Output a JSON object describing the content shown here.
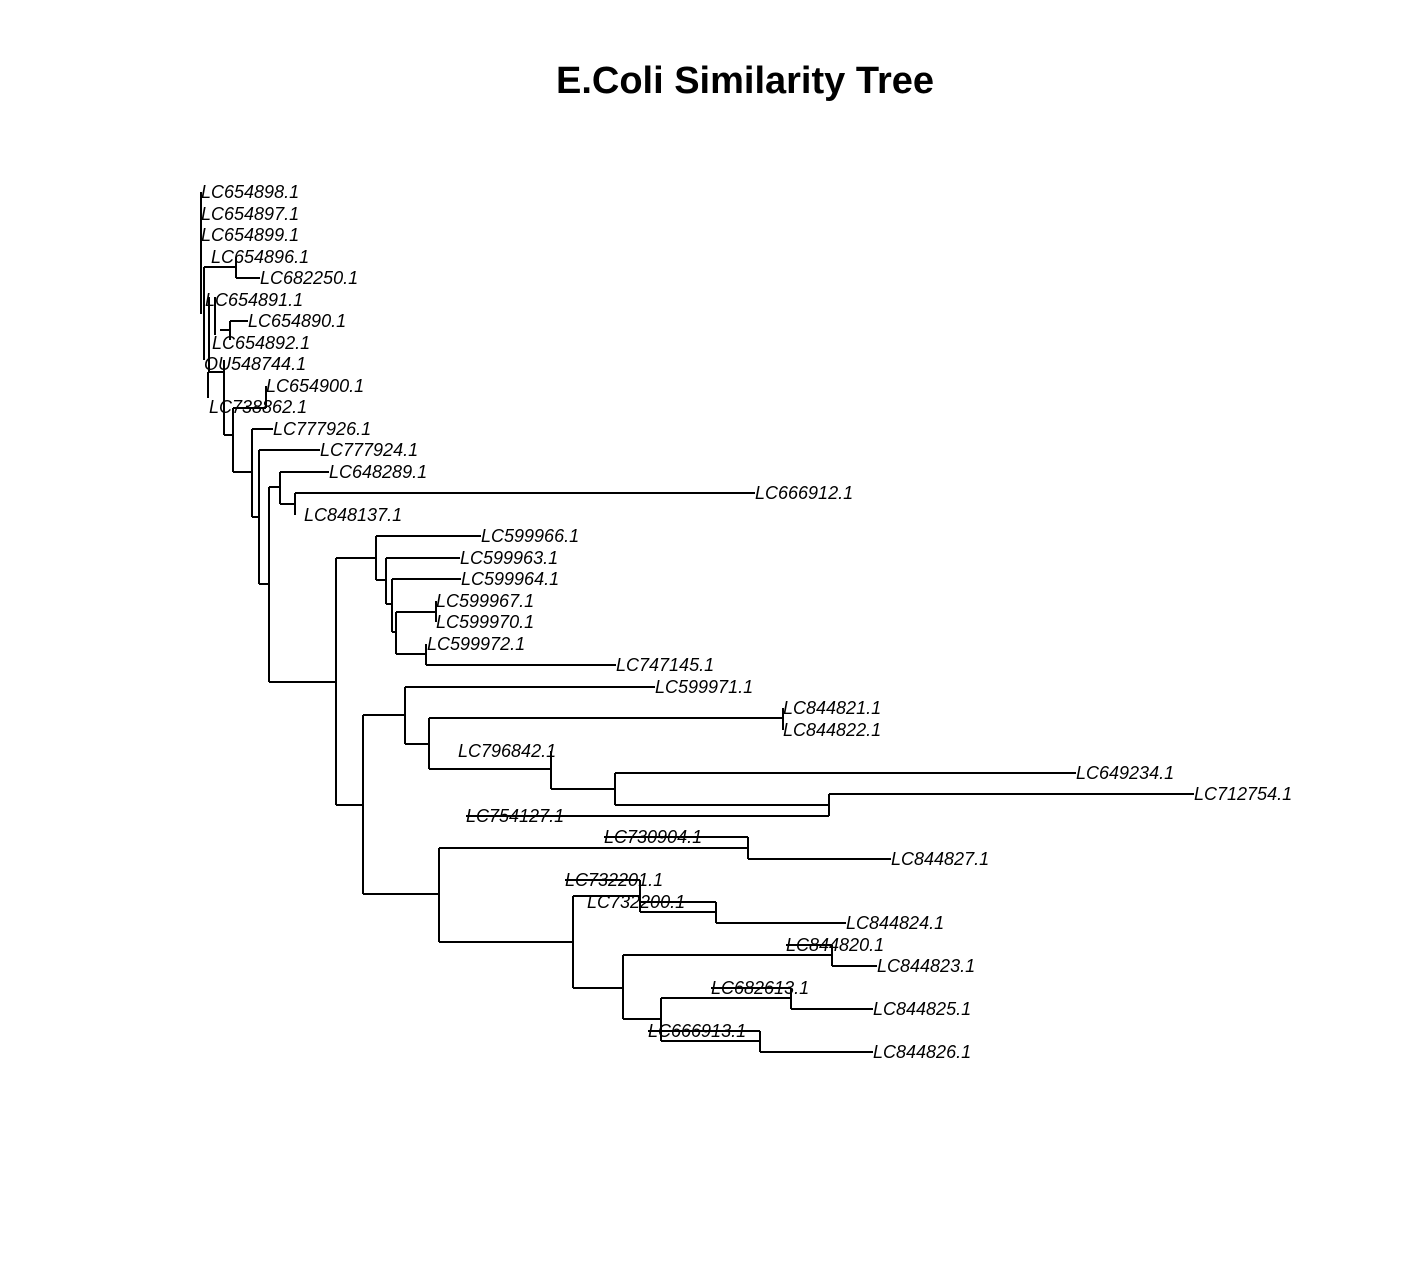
{
  "title": "E.Coli Similarity Tree",
  "tips": [
    "LC654898.1",
    "LC654897.1",
    "LC654899.1",
    "LC654896.1",
    "LC682250.1",
    "LC654891.1",
    "LC654890.1",
    "LC654892.1",
    "OU548744.1",
    "LC654900.1",
    "LC738862.1",
    "LC777926.1",
    "LC777924.1",
    "LC648289.1",
    "LC666912.1",
    "LC848137.1",
    "LC599966.1",
    "LC599963.1",
    "LC599964.1",
    "LC599967.1",
    "LC599970.1",
    "LC599972.1",
    "LC747145.1",
    "LC599971.1",
    "LC844821.1",
    "LC844822.1",
    "LC796842.1",
    "LC649234.1",
    "LC712754.1",
    "LC754127.1",
    "LC730904.1",
    "LC844827.1",
    "LC732201.1",
    "LC732200.1",
    "LC844824.1",
    "LC844820.1",
    "LC844823.1",
    "LC682613.1",
    "LC844825.1",
    "LC666913.1",
    "LC844826.1"
  ],
  "colors": {
    "line": "#000000",
    "text": "#000000",
    "background": "#ffffff"
  }
}
